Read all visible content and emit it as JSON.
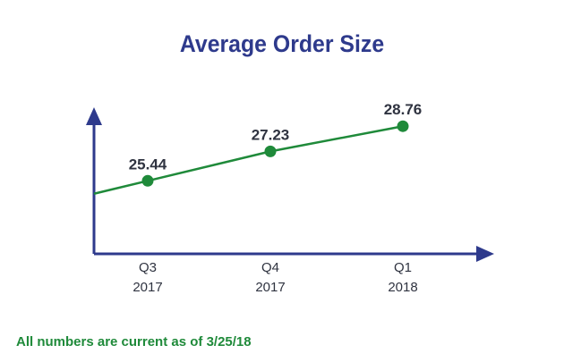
{
  "chart_data": {
    "type": "line",
    "title": "Average Order Size",
    "categories": [
      "Q3\n2017",
      "Q4\n2017",
      "Q1\n2018"
    ],
    "series": [
      {
        "values": [
          25.44,
          27.23,
          28.76
        ],
        "data_labels": [
          "25.44",
          "27.23",
          "28.76"
        ]
      }
    ],
    "ylim": [
      21,
      31
    ],
    "grid": false,
    "legend": "none",
    "colors": {
      "title": "#2e3a8c",
      "axis": "#2e3a8c",
      "line": "#1f8a3a",
      "point": "#1f8a3a",
      "labels": "#2f3340"
    }
  },
  "footnote": "All numbers are current as of 3/25/18"
}
